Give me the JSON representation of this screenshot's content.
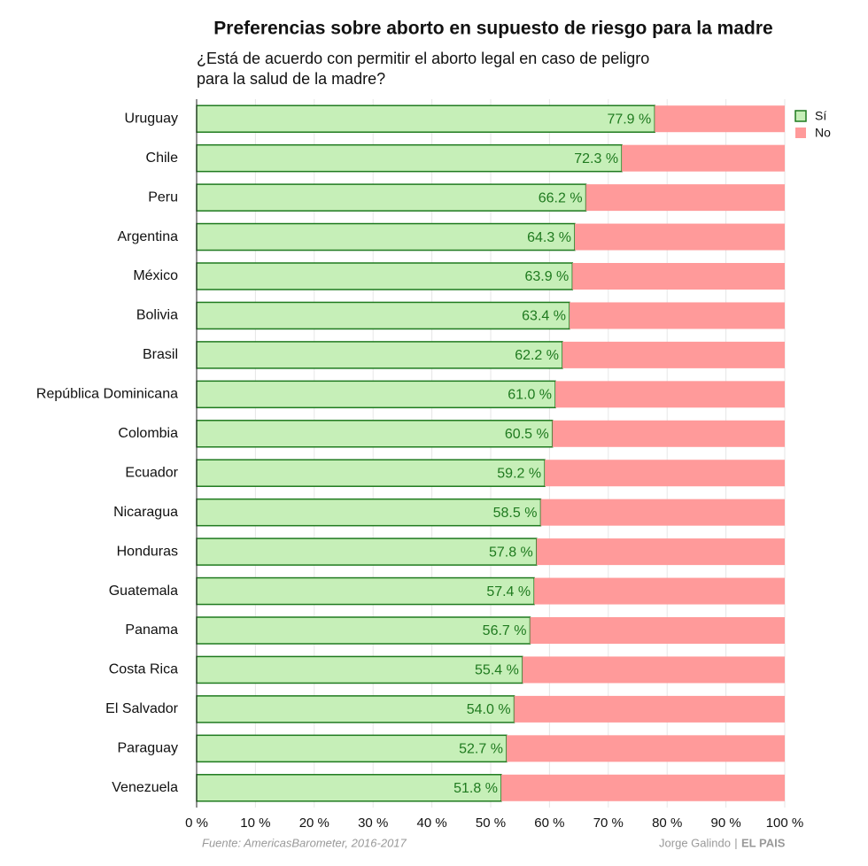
{
  "chart_data": {
    "type": "stacked-barh",
    "title": "Preferencias sobre aborto en supuesto de riesgo para la madre",
    "subtitle": [
      "¿Está de acuerdo con permitir el aborto legal en caso de peligro",
      "para la salud de la madre?"
    ],
    "categories": [
      "Uruguay",
      "Chile",
      "Peru",
      "Argentina",
      "México",
      "Bolivia",
      "Brasil",
      "República Dominicana",
      "Colombia",
      "Ecuador",
      "Nicaragua",
      "Honduras",
      "Guatemala",
      "Panama",
      "Costa Rica",
      "El Salvador",
      "Paraguay",
      "Venezuela"
    ],
    "series": [
      {
        "name": "Sí",
        "color": "#c6efb8",
        "edge": "#1f7a1f",
        "values": [
          77.9,
          72.3,
          66.2,
          64.3,
          63.9,
          63.4,
          62.2,
          61.0,
          60.5,
          59.2,
          58.5,
          57.8,
          57.4,
          56.7,
          55.4,
          54.0,
          52.7,
          51.8
        ],
        "value_labels": [
          "77.9 %",
          "72.3 %",
          "66.2 %",
          "64.3 %",
          "63.9 %",
          "63.4 %",
          "62.2 %",
          "61.0 %",
          "60.5 %",
          "59.2 %",
          "58.5 %",
          "57.8 %",
          "57.4 %",
          "56.7 %",
          "55.4 %",
          "54.0 %",
          "52.7 %",
          "51.8 %"
        ]
      },
      {
        "name": "No",
        "color": "#ff9a9a",
        "values": [
          22.1,
          27.7,
          33.8,
          35.7,
          36.1,
          36.6,
          37.8,
          39.0,
          39.5,
          40.8,
          41.5,
          42.2,
          42.6,
          43.3,
          44.6,
          46.0,
          47.3,
          48.2
        ]
      }
    ],
    "xlim": [
      0,
      100
    ],
    "xticks": [
      {
        "value": 0,
        "label": "0 %"
      },
      {
        "value": 10,
        "label": "10 %"
      },
      {
        "value": 20,
        "label": "20 %"
      },
      {
        "value": 30,
        "label": "30 %"
      },
      {
        "value": 40,
        "label": "40 %"
      },
      {
        "value": 50,
        "label": "50 %"
      },
      {
        "value": 60,
        "label": "60 %"
      },
      {
        "value": 70,
        "label": "70 %"
      },
      {
        "value": 80,
        "label": "80 %"
      },
      {
        "value": 90,
        "label": "90 %"
      },
      {
        "value": 100,
        "label": "100 %"
      }
    ],
    "grid": true,
    "legend": "top-right",
    "source": "Fuente: AmericasBarometer, 2016-2017",
    "credit_author": "Jorge Galindo",
    "credit_separator": "|",
    "credit_outlet": "EL PAIS"
  }
}
